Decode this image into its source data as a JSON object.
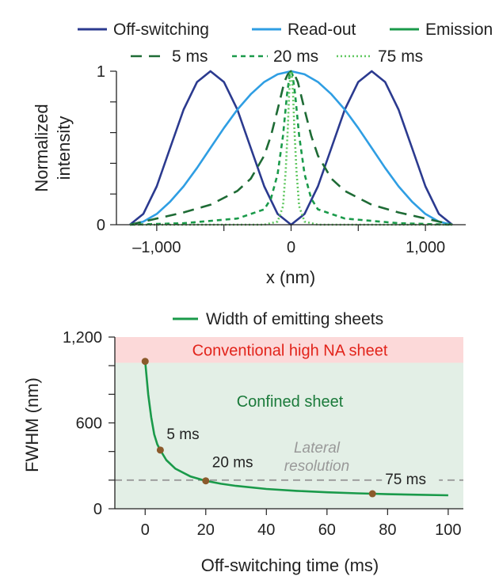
{
  "chart_data": [
    {
      "type": "line",
      "xlabel": "x (nm)",
      "ylabel_lines": [
        "Normalized",
        "intensity"
      ],
      "xlim": [
        -1300,
        1300
      ],
      "ylim": [
        0,
        1
      ],
      "x_ticks": [
        -1000,
        0,
        1000
      ],
      "x_tick_labels": [
        "–1,000",
        "0",
        "1,000"
      ],
      "y_ticks": [
        0,
        1
      ],
      "y_tick_labels": [
        "0",
        "1"
      ],
      "legend_row1": [
        {
          "name": "Off-switching",
          "color": "#2b3a8f",
          "dash": "solid"
        },
        {
          "name": "Read-out",
          "color": "#2f9ee3",
          "dash": "solid"
        },
        {
          "name": "Emission",
          "color": "#1a9a4a",
          "dash": "solid"
        }
      ],
      "legend_row2": [
        {
          "name": "5 ms",
          "color": "#1e6b35",
          "dash": "long"
        },
        {
          "name": "20 ms",
          "color": "#1a9a4a",
          "dash": "medium"
        },
        {
          "name": "75 ms",
          "color": "#5fc75f",
          "dash": "dot"
        }
      ],
      "series": [
        {
          "name": "Off-switching",
          "color": "#2b3a8f",
          "x": [
            -1200,
            -1100,
            -1000,
            -900,
            -800,
            -700,
            -600,
            -500,
            -400,
            -300,
            -200,
            -100,
            0,
            100,
            200,
            300,
            400,
            500,
            600,
            700,
            800,
            900,
            1000,
            1100,
            1200
          ],
          "y": [
            0,
            0.07,
            0.25,
            0.5,
            0.75,
            0.93,
            1,
            0.93,
            0.75,
            0.5,
            0.25,
            0.07,
            0,
            0.07,
            0.25,
            0.5,
            0.75,
            0.93,
            1,
            0.93,
            0.75,
            0.5,
            0.25,
            0.07,
            0
          ]
        },
        {
          "name": "Read-out",
          "color": "#2f9ee3",
          "x": [
            -1200,
            -1100,
            -1000,
            -900,
            -800,
            -700,
            -600,
            -500,
            -400,
            -300,
            -200,
            -100,
            0,
            100,
            200,
            300,
            400,
            500,
            600,
            700,
            800,
            900,
            1000,
            1100,
            1200
          ],
          "y": [
            0,
            0.02,
            0.07,
            0.15,
            0.25,
            0.37,
            0.5,
            0.63,
            0.75,
            0.85,
            0.93,
            0.98,
            1,
            0.98,
            0.93,
            0.85,
            0.75,
            0.63,
            0.5,
            0.37,
            0.25,
            0.15,
            0.07,
            0.02,
            0
          ]
        },
        {
          "name": "5 ms",
          "color": "#1e6b35",
          "x": [
            -1200,
            -1000,
            -800,
            -600,
            -400,
            -300,
            -200,
            -150,
            -100,
            -50,
            -25,
            0,
            25,
            50,
            100,
            150,
            200,
            300,
            400,
            600,
            800,
            1000,
            1200
          ],
          "y": [
            0,
            0.04,
            0.08,
            0.13,
            0.22,
            0.3,
            0.45,
            0.58,
            0.75,
            0.93,
            0.98,
            1,
            0.98,
            0.93,
            0.75,
            0.58,
            0.45,
            0.3,
            0.22,
            0.13,
            0.08,
            0.04,
            0
          ]
        },
        {
          "name": "20 ms",
          "color": "#1a9a4a",
          "x": [
            -1200,
            -800,
            -400,
            -200,
            -150,
            -100,
            -60,
            -30,
            -10,
            0,
            10,
            30,
            60,
            100,
            150,
            200,
            400,
            800,
            1200
          ],
          "y": [
            0,
            0.01,
            0.04,
            0.1,
            0.17,
            0.33,
            0.58,
            0.85,
            0.98,
            1,
            0.98,
            0.85,
            0.58,
            0.33,
            0.17,
            0.1,
            0.04,
            0.01,
            0
          ]
        },
        {
          "name": "75 ms",
          "color": "#5fc75f",
          "x": [
            -1200,
            -200,
            -100,
            -60,
            -40,
            -25,
            -15,
            -5,
            0,
            5,
            15,
            25,
            40,
            60,
            100,
            200,
            1200
          ],
          "y": [
            0,
            0,
            0.02,
            0.12,
            0.35,
            0.62,
            0.85,
            0.99,
            1,
            0.99,
            0.85,
            0.62,
            0.35,
            0.12,
            0.02,
            0,
            0
          ]
        }
      ]
    },
    {
      "type": "line",
      "xlabel": "Off-switching time (ms)",
      "ylabel": "FWHM (nm)",
      "xlim": [
        -10,
        105
      ],
      "ylim": [
        0,
        1200
      ],
      "x_ticks": [
        0,
        20,
        40,
        60,
        80,
        100
      ],
      "x_tick_labels": [
        "0",
        "20",
        "40",
        "60",
        "80",
        "100"
      ],
      "y_ticks": [
        0,
        600,
        1200
      ],
      "y_tick_labels": [
        "0",
        "600",
        "1,200"
      ],
      "y_minor_ticks": [
        200,
        400,
        800,
        1000
      ],
      "legend": [
        {
          "name": "Width of emitting sheets",
          "color": "#1a9a4a"
        }
      ],
      "regions": [
        {
          "label": "Conventional high NA sheet",
          "y_from": 1020,
          "y_to": 1200,
          "fill": "#fcd9d9",
          "text_color": "#e2231a"
        },
        {
          "label": "Confined sheet",
          "y_from": 0,
          "y_to": 1020,
          "fill": "#e3efe6",
          "text_color": "#1a7a3a"
        }
      ],
      "reference_line": {
        "label": "Lateral resolution",
        "y": 200,
        "color": "#999999"
      },
      "series": [
        {
          "name": "Width of emitting sheets",
          "color": "#1a9a4a",
          "x": [
            0,
            1,
            2,
            3,
            4,
            5,
            7,
            10,
            15,
            20,
            25,
            30,
            40,
            50,
            60,
            70,
            75,
            80,
            90,
            100
          ],
          "y": [
            1030,
            800,
            640,
            520,
            450,
            410,
            340,
            280,
            225,
            195,
            175,
            160,
            138,
            125,
            115,
            108,
            105,
            102,
            98,
            94
          ]
        }
      ],
      "points": [
        {
          "x": 0,
          "y": 1030,
          "label": ""
        },
        {
          "x": 5,
          "y": 410,
          "label": "5 ms"
        },
        {
          "x": 20,
          "y": 195,
          "label": "20 ms"
        },
        {
          "x": 75,
          "y": 105,
          "label": "75 ms"
        }
      ],
      "point_color": "#8b5a2b"
    }
  ]
}
